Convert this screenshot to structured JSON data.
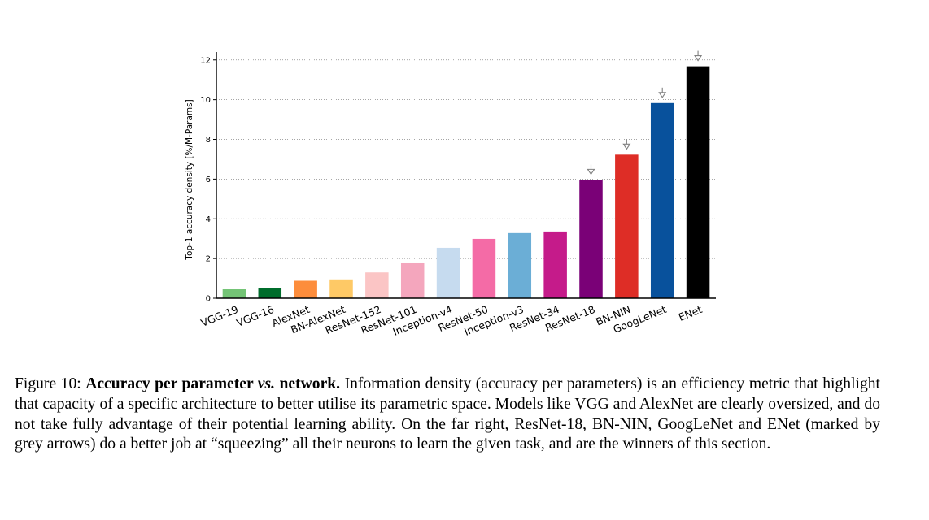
{
  "chart_data": {
    "type": "bar",
    "ylabel": "Top-1 accuracy density [%/M-Params]",
    "xlabel": "",
    "ylim": [
      0,
      12.4
    ],
    "yticks": [
      0,
      2,
      4,
      6,
      8,
      10,
      12
    ],
    "grid": "horizontal-dotted",
    "categories": [
      "VGG-19",
      "VGG-16",
      "AlexNet",
      "BN-AlexNet",
      "ResNet-152",
      "ResNet-101",
      "Inception-v4",
      "ResNet-50",
      "Inception-v3",
      "ResNet-34",
      "ResNet-18",
      "BN-NIN",
      "GoogLeNet",
      "ENet"
    ],
    "values": [
      0.45,
      0.52,
      0.88,
      0.95,
      1.3,
      1.76,
      2.54,
      2.99,
      3.28,
      3.36,
      5.96,
      7.23,
      9.83,
      11.68
    ],
    "colors": [
      "#74c476",
      "#006d2c",
      "#fd8d3c",
      "#fec966",
      "#fbc5c5",
      "#f4a6bd",
      "#c6dbef",
      "#f46ba6",
      "#6baed6",
      "#c51b8a",
      "#7a0177",
      "#de2d26",
      "#08519c",
      "#000000"
    ],
    "marked": [
      "ResNet-18",
      "BN-NIN",
      "GoogLeNet",
      "ENet"
    ],
    "marker_color": "#808080"
  },
  "caption": {
    "figure_label": "Figure 10:",
    "title_part1": "Accuracy per parameter ",
    "title_vs": "vs.",
    "title_part2": " network.",
    "body": " Information density (accuracy per parameters) is an efficiency metric that highlight that capacity of a specific architecture to better utilise its parametric space. Models like VGG and AlexNet are clearly oversized, and do not take fully advantage of their potential learning ability. On the far right, ResNet-18, BN-NIN, GoogLeNet and ENet (marked by grey arrows) do a better job at “squeezing” all their neurons to learn the given task, and are the winners of this section."
  }
}
